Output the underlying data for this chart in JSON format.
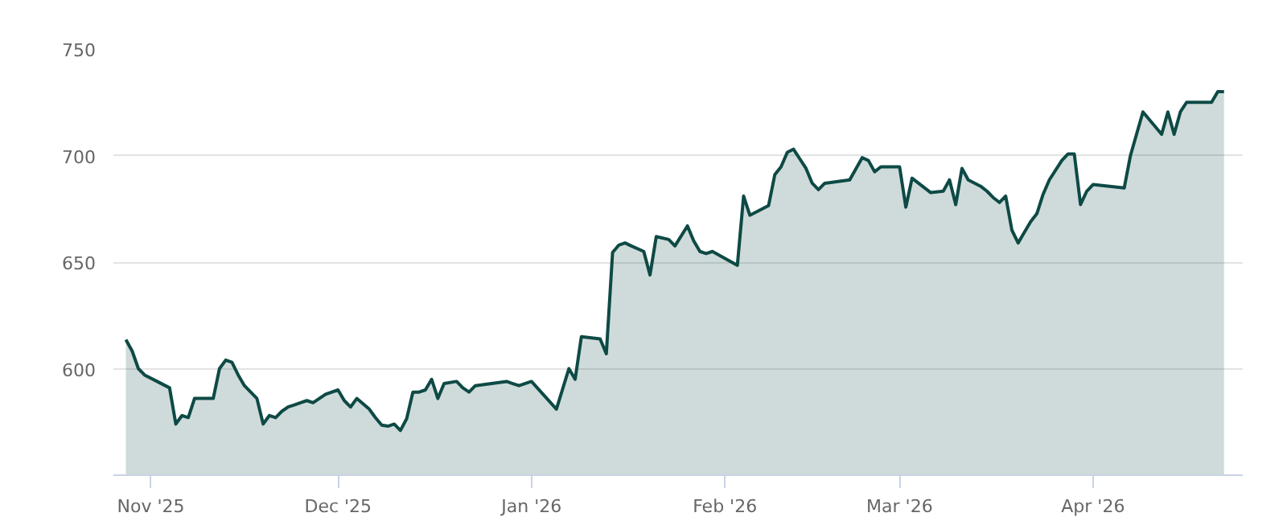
{
  "chart_data": {
    "type": "area",
    "x": [
      "2025-10-28",
      "2025-10-29",
      "2025-10-30",
      "2025-10-31",
      "2025-11-02",
      "2025-11-04",
      "2025-11-05",
      "2025-11-06",
      "2025-11-07",
      "2025-11-08",
      "2025-11-11",
      "2025-11-12",
      "2025-11-13",
      "2025-11-14",
      "2025-11-15",
      "2025-11-16",
      "2025-11-18",
      "2025-11-19",
      "2025-11-20",
      "2025-11-21",
      "2025-11-22",
      "2025-11-23",
      "2025-11-24",
      "2025-11-25",
      "2025-11-26",
      "2025-11-27",
      "2025-11-29",
      "2025-12-01",
      "2025-12-02",
      "2025-12-03",
      "2025-12-04",
      "2025-12-06",
      "2025-12-07",
      "2025-12-08",
      "2025-12-09",
      "2025-12-10",
      "2025-12-11",
      "2025-12-12",
      "2025-12-13",
      "2025-12-14",
      "2025-12-15",
      "2025-12-16",
      "2025-12-17",
      "2025-12-18",
      "2025-12-20",
      "2025-12-21",
      "2025-12-22",
      "2025-12-23",
      "2025-12-28",
      "2025-12-29",
      "2025-12-30",
      "2026-01-01",
      "2026-01-05",
      "2026-01-07",
      "2026-01-08",
      "2026-01-09",
      "2026-01-12",
      "2026-01-13",
      "2026-01-14",
      "2026-01-15",
      "2026-01-16",
      "2026-01-17",
      "2026-01-19",
      "2026-01-20",
      "2026-01-21",
      "2026-01-23",
      "2026-01-24",
      "2026-01-26",
      "2026-01-27",
      "2026-01-28",
      "2026-01-29",
      "2026-01-30",
      "2026-02-03",
      "2026-02-04",
      "2026-02-05",
      "2026-02-08",
      "2026-02-09",
      "2026-02-10",
      "2026-02-11",
      "2026-02-12",
      "2026-02-13",
      "2026-02-14",
      "2026-02-15",
      "2026-02-16",
      "2026-02-17",
      "2026-02-21",
      "2026-02-23",
      "2026-02-24",
      "2026-02-25",
      "2026-02-26",
      "2026-03-01",
      "2026-03-02",
      "2026-03-03",
      "2026-03-06",
      "2026-03-08",
      "2026-03-09",
      "2026-03-10",
      "2026-03-11",
      "2026-03-12",
      "2026-03-14",
      "2026-03-15",
      "2026-03-16",
      "2026-03-17",
      "2026-03-18",
      "2026-03-19",
      "2026-03-20",
      "2026-03-22",
      "2026-03-23",
      "2026-03-24",
      "2026-03-25",
      "2026-03-27",
      "2026-03-28",
      "2026-03-29",
      "2026-03-30",
      "2026-03-31",
      "2026-04-01",
      "2026-04-06",
      "2026-04-07",
      "2026-04-09",
      "2026-04-12",
      "2026-04-13",
      "2026-04-14",
      "2026-04-15",
      "2026-04-16",
      "2026-04-19",
      "2026-04-20",
      "2026-04-21",
      "2026-04-22"
    ],
    "series": [
      {
        "color": "#0e4a45",
        "values": [
          613.6,
          608.3,
          600,
          597,
          594,
          591,
          574,
          578,
          577,
          586,
          586,
          600,
          604,
          603,
          597,
          592,
          586,
          574,
          578,
          577,
          580,
          582,
          583,
          584,
          585,
          584,
          588,
          590,
          585,
          582,
          586,
          581,
          577,
          573.5,
          573,
          574,
          571,
          576.5,
          589,
          589,
          590,
          595,
          586,
          593,
          594,
          591,
          589,
          592,
          594,
          593,
          592,
          594,
          581,
          600,
          595,
          615,
          614,
          607,
          654.5,
          658,
          659,
          657.6,
          655,
          644,
          662,
          660.6,
          657.6,
          667,
          660,
          655,
          654,
          655,
          648.5,
          681,
          672,
          676.5,
          691,
          694.7,
          701.5,
          703,
          698.5,
          694,
          687,
          684,
          687,
          688.6,
          699,
          697.7,
          692.4,
          694.7,
          694.7,
          675.8,
          689.4,
          682.6,
          683.3,
          688.6,
          677,
          694,
          688.6,
          685.6,
          683.3,
          680.3,
          678,
          681,
          665,
          659,
          669,
          672.7,
          681.8,
          688.6,
          697.7,
          700.8,
          700.8,
          677,
          683.3,
          686.4,
          684.8,
          700,
          720.5,
          710,
          720.5,
          710,
          720.5,
          725,
          725,
          725,
          730,
          730
        ]
      }
    ],
    "xlim": [
      "2025-10-26",
      "2026-04-25"
    ],
    "xticks": [
      {
        "value": "2025-11-01",
        "label": "Nov '25"
      },
      {
        "value": "2025-12-01",
        "label": "Dec '25"
      },
      {
        "value": "2026-01-01",
        "label": "Jan '26"
      },
      {
        "value": "2026-02-01",
        "label": "Feb '26"
      },
      {
        "value": "2026-03-01",
        "label": "Mar '26"
      },
      {
        "value": "2026-04-01",
        "label": "Apr '26"
      }
    ],
    "ylim": [
      550,
      750
    ],
    "yticks": [
      600,
      650,
      700,
      750
    ],
    "grid": "y"
  }
}
